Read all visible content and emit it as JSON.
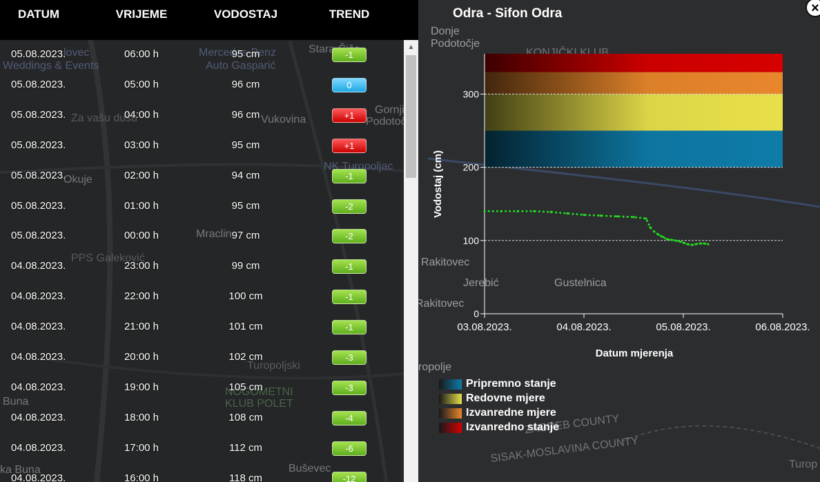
{
  "table": {
    "headers": {
      "date": "DATUM",
      "time": "VRIJEME",
      "level": "VODOSTAJ",
      "trend": "TREND"
    },
    "rows": [
      {
        "date": "05.08.2023.",
        "time": "06:00 h",
        "level": "95 cm",
        "trend": "-1",
        "direction": "down"
      },
      {
        "date": "05.08.2023.",
        "time": "05:00 h",
        "level": "96 cm",
        "trend": "0",
        "direction": "zero"
      },
      {
        "date": "05.08.2023.",
        "time": "04:00 h",
        "level": "96 cm",
        "trend": "+1",
        "direction": "up"
      },
      {
        "date": "05.08.2023.",
        "time": "03:00 h",
        "level": "95 cm",
        "trend": "+1",
        "direction": "up"
      },
      {
        "date": "05.08.2023.",
        "time": "02:00 h",
        "level": "94 cm",
        "trend": "-1",
        "direction": "down"
      },
      {
        "date": "05.08.2023.",
        "time": "01:00 h",
        "level": "95 cm",
        "trend": "-2",
        "direction": "down"
      },
      {
        "date": "05.08.2023.",
        "time": "00:00 h",
        "level": "97 cm",
        "trend": "-2",
        "direction": "down"
      },
      {
        "date": "04.08.2023.",
        "time": "23:00 h",
        "level": "99 cm",
        "trend": "-1",
        "direction": "down"
      },
      {
        "date": "04.08.2023.",
        "time": "22:00 h",
        "level": "100 cm",
        "trend": "-1",
        "direction": "down"
      },
      {
        "date": "04.08.2023.",
        "time": "21:00 h",
        "level": "101 cm",
        "trend": "-1",
        "direction": "down"
      },
      {
        "date": "04.08.2023.",
        "time": "20:00 h",
        "level": "102 cm",
        "trend": "-3",
        "direction": "down"
      },
      {
        "date": "04.08.2023.",
        "time": "19:00 h",
        "level": "105 cm",
        "trend": "-3",
        "direction": "down"
      },
      {
        "date": "04.08.2023.",
        "time": "18:00 h",
        "level": "108 cm",
        "trend": "-4",
        "direction": "down"
      },
      {
        "date": "04.08.2023.",
        "time": "17:00 h",
        "level": "112 cm",
        "trend": "-6",
        "direction": "down"
      },
      {
        "date": "04.08.2023.",
        "time": "16:00 h",
        "level": "118 cm",
        "trend": "-12",
        "direction": "down"
      }
    ]
  },
  "trend_colors": {
    "down": "#7ac935",
    "zero": "#33b5ea",
    "up": "#e01b1b"
  },
  "map": {
    "labels": [
      {
        "text": "Donje",
        "style": "normal"
      },
      {
        "text": "Podotočje",
        "style": "normal"
      },
      {
        "text": "KONJIČKI KLUB",
        "style": "dim"
      },
      {
        "text": "lovec",
        "style": "blue"
      },
      {
        "text": "Weddings & Events",
        "style": "blue"
      },
      {
        "text": "Mercedes-Benz",
        "style": "blue"
      },
      {
        "text": "Auto Gasparić",
        "style": "blue"
      },
      {
        "text": "Stara Čiče",
        "style": "normal"
      },
      {
        "text": "Za vašu dušu",
        "style": "dim"
      },
      {
        "text": "Vukovina",
        "style": "normal"
      },
      {
        "text": "Gornji",
        "style": "normal"
      },
      {
        "text": "Podotočje",
        "style": "normal"
      },
      {
        "text": "Okuje",
        "style": "normal"
      },
      {
        "text": "NK Turopoljac",
        "style": "blue"
      },
      {
        "text": "Mraclin",
        "style": "normal"
      },
      {
        "text": "PPS Galeković",
        "style": "dim"
      },
      {
        "text": "Rakitovec",
        "style": "normal"
      },
      {
        "text": "Jerebić",
        "style": "normal"
      },
      {
        "text": "Gustelnica",
        "style": "normal"
      },
      {
        "text": "Rakitovec",
        "style": "normal"
      },
      {
        "text": "Turopoljski",
        "style": "dim"
      },
      {
        "text": "ropolje",
        "style": "normal"
      },
      {
        "text": "NOGOMETNI",
        "style": "green"
      },
      {
        "text": "KLUB POLET",
        "style": "green"
      },
      {
        "text": "Buna",
        "style": "normal"
      },
      {
        "text": "Buševec",
        "style": "normal"
      },
      {
        "text": "ZAGREB COUNTY",
        "style": "dim"
      },
      {
        "text": "SISAK-MOSLAVINA COUNTY",
        "style": "dim"
      },
      {
        "text": "ka Buna",
        "style": "normal"
      },
      {
        "text": "Turop",
        "style": "dim"
      }
    ]
  },
  "chart": {
    "title": "Odra - Sifon Odra",
    "close_label": "×",
    "legend": [
      {
        "label": "Pripremno stanje",
        "color": "#0e7ba8"
      },
      {
        "label": "Redovne mjere",
        "color": "#e8e04a"
      },
      {
        "label": "Izvanredne mjere",
        "color": "#e8862c"
      },
      {
        "label": "Izvanredno stanje",
        "color": "#d60000"
      }
    ]
  },
  "chart_data": {
    "type": "line",
    "title": "Odra - Sifon Odra",
    "xlabel": "Datum mjerenja",
    "ylabel": "Vodostaj (cm)",
    "x_ticks": [
      "03.08.2023.",
      "04.08.2023.",
      "05.08.2023.",
      "06.08.2023."
    ],
    "xlim": [
      "03.08.2023. 00:00",
      "06.08.2023. 00:00"
    ],
    "y_ticks": [
      0,
      100,
      200,
      300
    ],
    "ylim": [
      0,
      355
    ],
    "grid": true,
    "bands": [
      {
        "name": "Pripremno stanje",
        "from": 200,
        "to": 250,
        "color": "#0e7ba8"
      },
      {
        "name": "Redovne mjere",
        "from": 250,
        "to": 300,
        "color": "#e8e04a"
      },
      {
        "name": "Izvanredne mjere",
        "from": 300,
        "to": 330,
        "color": "#e8862c"
      },
      {
        "name": "Izvanredno stanje",
        "from": 330,
        "to": 360,
        "color": "#d60000"
      }
    ],
    "series": [
      {
        "color": "#22dd22",
        "points": [
          [
            "03.08.2023. 00:00",
            140
          ],
          [
            "03.08.2023. 04:00",
            140
          ],
          [
            "03.08.2023. 08:00",
            140
          ],
          [
            "03.08.2023. 12:00",
            140
          ],
          [
            "03.08.2023. 16:00",
            139
          ],
          [
            "03.08.2023. 20:00",
            137
          ],
          [
            "04.08.2023. 00:00",
            135
          ],
          [
            "04.08.2023. 04:00",
            134
          ],
          [
            "04.08.2023. 08:00",
            133
          ],
          [
            "04.08.2023. 12:00",
            132
          ],
          [
            "04.08.2023. 15:00",
            130
          ],
          [
            "04.08.2023. 16:00",
            118
          ],
          [
            "04.08.2023. 17:00",
            112
          ],
          [
            "04.08.2023. 18:00",
            108
          ],
          [
            "04.08.2023. 19:00",
            105
          ],
          [
            "04.08.2023. 20:00",
            102
          ],
          [
            "04.08.2023. 21:00",
            101
          ],
          [
            "04.08.2023. 22:00",
            100
          ],
          [
            "04.08.2023. 23:00",
            99
          ],
          [
            "05.08.2023. 00:00",
            97
          ],
          [
            "05.08.2023. 01:00",
            95
          ],
          [
            "05.08.2023. 02:00",
            94
          ],
          [
            "05.08.2023. 03:00",
            95
          ],
          [
            "05.08.2023. 04:00",
            96
          ],
          [
            "05.08.2023. 05:00",
            96
          ],
          [
            "05.08.2023. 06:00",
            95
          ]
        ]
      }
    ]
  }
}
